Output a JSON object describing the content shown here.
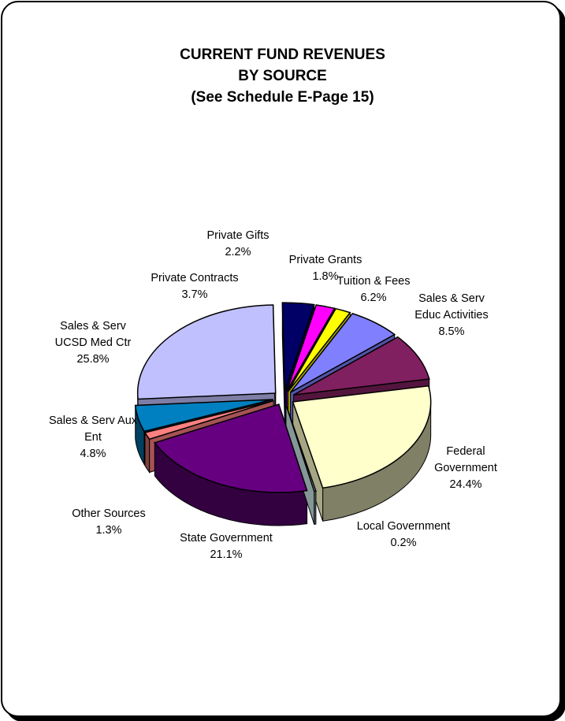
{
  "chart_data": {
    "type": "pie",
    "title": [
      "CURRENT FUND REVENUES",
      "BY SOURCE",
      "(See Schedule E-Page 15)"
    ],
    "slices": [
      {
        "label": [
          "Private Contracts"
        ],
        "value": 3.7,
        "value_label": "3.7%",
        "color": "#000066"
      },
      {
        "label": [
          "Private Gifts"
        ],
        "value": 2.2,
        "value_label": "2.2%",
        "color": "#ff00ff"
      },
      {
        "label": [
          "Private Grants"
        ],
        "value": 1.8,
        "value_label": "1.8%",
        "color": "#ffff00"
      },
      {
        "label": [
          "Tuition & Fees"
        ],
        "value": 6.2,
        "value_label": "6.2%",
        "color": "#8080ff"
      },
      {
        "label": [
          "Sales & Serv",
          "Educ Activities"
        ],
        "value": 8.5,
        "value_label": "8.5%",
        "color": "#802060"
      },
      {
        "label": [
          "Federal",
          "Government"
        ],
        "value": 24.4,
        "value_label": "24.4%",
        "color": "#ffffcc"
      },
      {
        "label": [
          "Local Government"
        ],
        "value": 0.2,
        "value_label": "0.2%",
        "color": "#cce6e6"
      },
      {
        "label": [
          "State Government"
        ],
        "value": 21.1,
        "value_label": "21.1%",
        "color": "#660080"
      },
      {
        "label": [
          "Other Sources"
        ],
        "value": 1.3,
        "value_label": "1.3%",
        "color": "#ff8080"
      },
      {
        "label": [
          "Sales & Serv Aux",
          "Ent"
        ],
        "value": 4.8,
        "value_label": "4.8%",
        "color": "#0080c0"
      },
      {
        "label": [
          "Sales & Serv",
          "UCSD Med Ctr"
        ],
        "value": 25.8,
        "value_label": "25.8%",
        "color": "#c0c0ff"
      }
    ]
  }
}
